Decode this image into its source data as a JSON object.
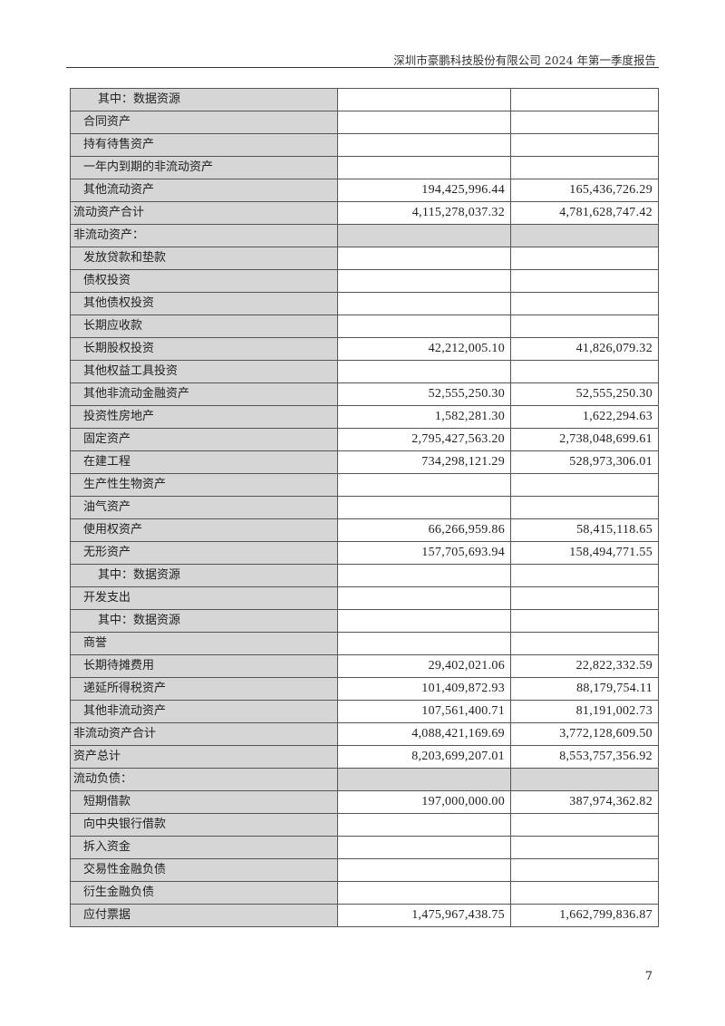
{
  "header": {
    "title": "深圳市豪鹏科技股份有限公司 2024 年第一季度报告"
  },
  "rows": [
    {
      "label": "其中：数据资源",
      "indent": 2,
      "current": "",
      "prior": ""
    },
    {
      "label": "合同资产",
      "indent": 1,
      "current": "",
      "prior": ""
    },
    {
      "label": "持有待售资产",
      "indent": 1,
      "current": "",
      "prior": ""
    },
    {
      "label": "一年内到期的非流动资产",
      "indent": 1,
      "current": "",
      "prior": ""
    },
    {
      "label": "其他流动资产",
      "indent": 1,
      "current": "194,425,996.44",
      "prior": "165,436,726.29"
    },
    {
      "label": "流动资产合计",
      "indent": 0,
      "current": "4,115,278,037.32",
      "prior": "4,781,628,747.42"
    },
    {
      "label": "非流动资产：",
      "indent": 0,
      "section": true,
      "current": "",
      "prior": ""
    },
    {
      "label": "发放贷款和垫款",
      "indent": 1,
      "current": "",
      "prior": ""
    },
    {
      "label": "债权投资",
      "indent": 1,
      "current": "",
      "prior": ""
    },
    {
      "label": "其他债权投资",
      "indent": 1,
      "current": "",
      "prior": ""
    },
    {
      "label": "长期应收款",
      "indent": 1,
      "current": "",
      "prior": ""
    },
    {
      "label": "长期股权投资",
      "indent": 1,
      "current": "42,212,005.10",
      "prior": "41,826,079.32"
    },
    {
      "label": "其他权益工具投资",
      "indent": 1,
      "current": "",
      "prior": ""
    },
    {
      "label": "其他非流动金融资产",
      "indent": 1,
      "current": "52,555,250.30",
      "prior": "52,555,250.30"
    },
    {
      "label": "投资性房地产",
      "indent": 1,
      "current": "1,582,281.30",
      "prior": "1,622,294.63"
    },
    {
      "label": "固定资产",
      "indent": 1,
      "current": "2,795,427,563.20",
      "prior": "2,738,048,699.61"
    },
    {
      "label": "在建工程",
      "indent": 1,
      "current": "734,298,121.29",
      "prior": "528,973,306.01"
    },
    {
      "label": "生产性生物资产",
      "indent": 1,
      "current": "",
      "prior": ""
    },
    {
      "label": "油气资产",
      "indent": 1,
      "current": "",
      "prior": ""
    },
    {
      "label": "使用权资产",
      "indent": 1,
      "current": "66,266,959.86",
      "prior": "58,415,118.65"
    },
    {
      "label": "无形资产",
      "indent": 1,
      "current": "157,705,693.94",
      "prior": "158,494,771.55"
    },
    {
      "label": "其中：数据资源",
      "indent": 2,
      "current": "",
      "prior": ""
    },
    {
      "label": "开发支出",
      "indent": 1,
      "current": "",
      "prior": ""
    },
    {
      "label": "其中：数据资源",
      "indent": 2,
      "current": "",
      "prior": ""
    },
    {
      "label": "商誉",
      "indent": 1,
      "current": "",
      "prior": ""
    },
    {
      "label": "长期待摊费用",
      "indent": 1,
      "current": "29,402,021.06",
      "prior": "22,822,332.59"
    },
    {
      "label": "递延所得税资产",
      "indent": 1,
      "current": "101,409,872.93",
      "prior": "88,179,754.11"
    },
    {
      "label": "其他非流动资产",
      "indent": 1,
      "current": "107,561,400.71",
      "prior": "81,191,002.73"
    },
    {
      "label": "非流动资产合计",
      "indent": 0,
      "current": "4,088,421,169.69",
      "prior": "3,772,128,609.50"
    },
    {
      "label": "资产总计",
      "indent": 0,
      "current": "8,203,699,207.01",
      "prior": "8,553,757,356.92"
    },
    {
      "label": "流动负债：",
      "indent": 0,
      "section": true,
      "current": "",
      "prior": ""
    },
    {
      "label": "短期借款",
      "indent": 1,
      "current": "197,000,000.00",
      "prior": "387,974,362.82"
    },
    {
      "label": "向中央银行借款",
      "indent": 1,
      "current": "",
      "prior": ""
    },
    {
      "label": "拆入资金",
      "indent": 1,
      "current": "",
      "prior": ""
    },
    {
      "label": "交易性金融负债",
      "indent": 1,
      "current": "",
      "prior": ""
    },
    {
      "label": "衍生金融负债",
      "indent": 1,
      "current": "",
      "prior": ""
    },
    {
      "label": "应付票据",
      "indent": 1,
      "current": "1,475,967,438.75",
      "prior": "1,662,799,836.87"
    }
  ],
  "footer": {
    "page_number": "7"
  }
}
